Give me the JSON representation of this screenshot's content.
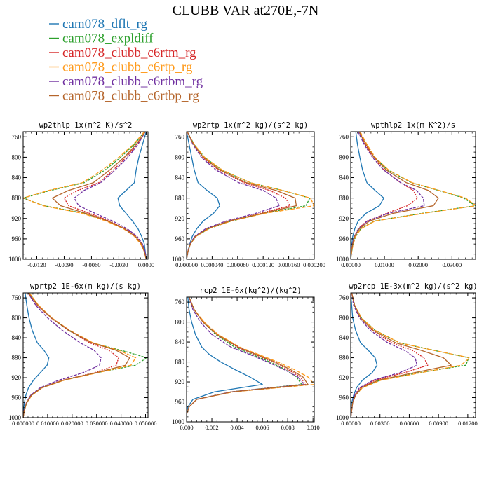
{
  "figure_title": "CLUBB VAR at270E,-7N",
  "legend": [
    {
      "name": "cam078_dflt_rg",
      "color": "#1f77b4"
    },
    {
      "name": "cam078_expldiff",
      "color": "#2ca02c"
    },
    {
      "name": "cam078_clubb_c6rtm_rg",
      "color": "#d62728"
    },
    {
      "name": "cam078_clubb_c6rtp_rg",
      "color": "#ff9a1a"
    },
    {
      "name": "cam078_clubb_c6rtbm_rg",
      "color": "#7030a0"
    },
    {
      "name": "cam078_clubb_c6rtbp_rg",
      "color": "#b5652b"
    }
  ],
  "chart_data": [
    {
      "type": "line",
      "title": "wp2thlp  1x(m^2 K)/s^2",
      "xlim": [
        -0.0135,
        0.0002
      ],
      "ylim": [
        1000,
        750
      ],
      "xticks": [
        -0.012,
        -0.009,
        -0.006,
        -0.003,
        0.0
      ],
      "xtick_labels": [
        "-0.0120",
        "-0.0090",
        "-0.0060",
        "-0.0030",
        "0.0000"
      ],
      "yticks": [
        760,
        800,
        840,
        880,
        920,
        960,
        1000
      ],
      "y": [
        750,
        775,
        800,
        825,
        850,
        865,
        880,
        895,
        910,
        925,
        940,
        955,
        970,
        985,
        1000
      ],
      "series": [
        {
          "name": "cam078_dflt_rg",
          "values": [
            0.0,
            -0.0004,
            -0.0008,
            -0.0011,
            -0.0013,
            -0.0022,
            -0.0031,
            -0.0029,
            -0.0022,
            -0.0015,
            -0.0009,
            -0.0005,
            -0.0002,
            -0.0001,
            0.0
          ]
        },
        {
          "name": "cam078_expldiff",
          "values": [
            -0.0002,
            -0.0013,
            -0.0028,
            -0.0045,
            -0.0068,
            -0.0105,
            -0.0135,
            -0.0112,
            -0.0068,
            -0.0042,
            -0.0024,
            -0.0012,
            -0.0005,
            -0.0002,
            0.0
          ]
        },
        {
          "name": "cam078_clubb_c6rtm_rg",
          "values": [
            -0.0001,
            -0.001,
            -0.0022,
            -0.0036,
            -0.0052,
            -0.0075,
            -0.009,
            -0.0085,
            -0.0062,
            -0.004,
            -0.0023,
            -0.0011,
            -0.0005,
            -0.0002,
            0.0
          ]
        },
        {
          "name": "cam078_clubb_c6rtp_rg",
          "values": [
            -0.0002,
            -0.0014,
            -0.003,
            -0.0048,
            -0.007,
            -0.0107,
            -0.0135,
            -0.0113,
            -0.007,
            -0.0044,
            -0.0025,
            -0.0013,
            -0.0006,
            -0.0002,
            0.0
          ]
        },
        {
          "name": "cam078_clubb_c6rtbm_rg",
          "values": [
            -0.0001,
            -0.0009,
            -0.002,
            -0.0034,
            -0.005,
            -0.0068,
            -0.0079,
            -0.0074,
            -0.0056,
            -0.0037,
            -0.0021,
            -0.001,
            -0.0004,
            -0.0001,
            0.0
          ]
        },
        {
          "name": "cam078_clubb_c6rtbp_rg",
          "values": [
            -0.0001,
            -0.0011,
            -0.0024,
            -0.004,
            -0.0058,
            -0.0085,
            -0.0103,
            -0.0094,
            -0.0066,
            -0.0042,
            -0.0024,
            -0.0012,
            -0.0005,
            -0.0002,
            0.0
          ]
        }
      ]
    },
    {
      "type": "line",
      "title": "wp2rtp  1x(m^2 kg)/(s^2 kg)",
      "xlim": [
        0.0,
        0.0002
      ],
      "ylim": [
        1000,
        750
      ],
      "xticks": [
        0.0,
        4e-05,
        8e-05,
        0.00012,
        0.00016,
        0.0002
      ],
      "xtick_labels": [
        "0.000000",
        "0.000040",
        "0.000080",
        "0.000120",
        "0.000160",
        "0.000200"
      ],
      "yticks": [
        760,
        800,
        840,
        880,
        920,
        960,
        1000
      ],
      "y": [
        750,
        775,
        800,
        825,
        850,
        865,
        880,
        895,
        910,
        925,
        940,
        955,
        970,
        985,
        1000
      ],
      "series": [
        {
          "name": "cam078_dflt_rg",
          "values": [
            0.0,
            4e-06,
            8e-06,
            1.2e-05,
            1.8e-05,
            3.2e-05,
            4.8e-05,
            5.2e-05,
            4.2e-05,
            2.6e-05,
            1.6e-05,
            9e-06,
            5e-06,
            2e-06,
            0.0
          ]
        },
        {
          "name": "cam078_expldiff",
          "values": [
            1e-06,
            1.2e-05,
            2.8e-05,
            5.5e-05,
            0.0001,
            0.00015,
            0.000193,
            0.000187,
            0.00012,
            7e-05,
            3.5e-05,
            1.5e-05,
            6e-06,
            2e-06,
            0.0
          ]
        },
        {
          "name": "cam078_clubb_c6rtm_rg",
          "values": [
            1e-06,
            1.1e-05,
            2.5e-05,
            5e-05,
            9e-05,
            0.00013,
            0.000155,
            0.000162,
            0.000115,
            6.5e-05,
            3.2e-05,
            1.4e-05,
            6e-06,
            2e-06,
            0.0
          ]
        },
        {
          "name": "cam078_clubb_c6rtp_rg",
          "values": [
            1e-06,
            1.2e-05,
            2.8e-05,
            5.6e-05,
            0.0001,
            0.00015,
            0.000194,
            0.0002,
            0.000122,
            7e-05,
            3.5e-05,
            1.5e-05,
            6e-06,
            2e-06,
            0.0
          ]
        },
        {
          "name": "cam078_clubb_c6rtbm_rg",
          "values": [
            1e-06,
            1e-05,
            2.3e-05,
            4.6e-05,
            8.2e-05,
            0.00012,
            0.00014,
            0.000145,
            0.000108,
            6.2e-05,
            3e-05,
            1.3e-05,
            5e-06,
            2e-06,
            0.0
          ]
        },
        {
          "name": "cam078_clubb_c6rtbp_rg",
          "values": [
            1e-06,
            1.1e-05,
            2.6e-05,
            5.2e-05,
            9.4e-05,
            0.00014,
            0.00017,
            0.000172,
            0.000118,
            6.7e-05,
            3.3e-05,
            1.4e-05,
            6e-06,
            2e-06,
            0.0
          ]
        }
      ]
    },
    {
      "type": "line",
      "title": "wpthlp2  1x(m K^2)/s",
      "xlim": [
        0.0,
        0.037
      ],
      "ylim": [
        1000,
        750
      ],
      "xticks": [
        0.0,
        0.01,
        0.02,
        0.03
      ],
      "xtick_labels": [
        "0.00000",
        "0.01000",
        "0.02000",
        "0.03000"
      ],
      "yticks": [
        760,
        800,
        840,
        880,
        920,
        960,
        1000
      ],
      "y": [
        750,
        775,
        800,
        825,
        850,
        865,
        880,
        895,
        910,
        925,
        940,
        955,
        970,
        985,
        1000
      ],
      "series": [
        {
          "name": "cam078_dflt_rg",
          "values": [
            0.0015,
            0.002,
            0.0027,
            0.0035,
            0.0048,
            0.0072,
            0.0098,
            0.0085,
            0.0045,
            0.0022,
            0.0012,
            0.0006,
            0.0003,
            0.0001,
            0.0
          ]
        },
        {
          "name": "cam078_expldiff",
          "values": [
            0.0025,
            0.0045,
            0.007,
            0.011,
            0.018,
            0.026,
            0.0335,
            0.037,
            0.021,
            0.007,
            0.003,
            0.0015,
            0.0007,
            0.0003,
            0.0
          ]
        },
        {
          "name": "cam078_clubb_c6rtm_rg",
          "values": [
            0.0025,
            0.0043,
            0.0066,
            0.0098,
            0.0148,
            0.0185,
            0.0198,
            0.0168,
            0.0105,
            0.0048,
            0.0022,
            0.0011,
            0.0005,
            0.0002,
            0.0
          ]
        },
        {
          "name": "cam078_clubb_c6rtp_rg",
          "values": [
            0.0028,
            0.0048,
            0.0072,
            0.0112,
            0.0182,
            0.0262,
            0.034,
            0.0372,
            0.0215,
            0.0072,
            0.0031,
            0.0015,
            0.0007,
            0.0003,
            0.0
          ]
        },
        {
          "name": "cam078_clubb_c6rtbm_rg",
          "values": [
            0.0022,
            0.004,
            0.0064,
            0.0098,
            0.0148,
            0.0195,
            0.0215,
            0.0218,
            0.011,
            0.005,
            0.0023,
            0.0011,
            0.0005,
            0.0002,
            0.0
          ]
        },
        {
          "name": "cam078_clubb_c6rtbp_rg",
          "values": [
            0.0025,
            0.0045,
            0.0069,
            0.0105,
            0.0165,
            0.023,
            0.026,
            0.0245,
            0.0125,
            0.0056,
            0.0026,
            0.0012,
            0.0006,
            0.0002,
            0.0
          ]
        }
      ]
    },
    {
      "type": "line",
      "title": "wprtp2  1E-6x(m kg)/(s kg)",
      "xlim": [
        0.0,
        0.051
      ],
      "ylim": [
        1000,
        750
      ],
      "xticks": [
        0.0,
        0.01,
        0.02,
        0.03,
        0.04,
        0.05
      ],
      "xtick_labels": [
        "0.000000",
        "0.010000",
        "0.020000",
        "0.030000",
        "0.040000",
        "0.050000"
      ],
      "yticks": [
        760,
        800,
        840,
        880,
        920,
        960,
        1000
      ],
      "y": [
        750,
        775,
        800,
        825,
        850,
        865,
        880,
        895,
        910,
        925,
        940,
        955,
        970,
        985,
        1000
      ],
      "series": [
        {
          "name": "cam078_dflt_rg",
          "values": [
            0.0008,
            0.0015,
            0.0024,
            0.0037,
            0.0058,
            0.0085,
            0.0105,
            0.0098,
            0.007,
            0.0042,
            0.0022,
            0.0011,
            0.0005,
            0.0002,
            0.0
          ]
        },
        {
          "name": "cam078_expldiff",
          "values": [
            0.0025,
            0.0062,
            0.0115,
            0.0185,
            0.028,
            0.04,
            0.0505,
            0.046,
            0.03,
            0.0165,
            0.0078,
            0.0035,
            0.0015,
            0.0005,
            0.0
          ]
        },
        {
          "name": "cam078_clubb_c6rtm_rg",
          "values": [
            0.002,
            0.0058,
            0.0113,
            0.0185,
            0.0272,
            0.035,
            0.039,
            0.038,
            0.029,
            0.016,
            0.0076,
            0.0034,
            0.0014,
            0.0005,
            0.0
          ]
        },
        {
          "name": "cam078_clubb_c6rtp_rg",
          "values": [
            0.0025,
            0.0063,
            0.0117,
            0.019,
            0.0285,
            0.039,
            0.046,
            0.044,
            0.0305,
            0.0168,
            0.0079,
            0.0036,
            0.0015,
            0.0005,
            0.0
          ]
        },
        {
          "name": "cam078_clubb_c6rtbm_rg",
          "values": [
            0.002,
            0.0052,
            0.01,
            0.016,
            0.0233,
            0.029,
            0.0318,
            0.0312,
            0.0245,
            0.0145,
            0.007,
            0.0031,
            0.0013,
            0.0004,
            0.0
          ]
        },
        {
          "name": "cam078_clubb_c6rtbp_rg",
          "values": [
            0.0022,
            0.006,
            0.0115,
            0.0188,
            0.028,
            0.038,
            0.0435,
            0.0418,
            0.0298,
            0.0163,
            0.0077,
            0.0034,
            0.0014,
            0.0005,
            0.0
          ]
        }
      ]
    },
    {
      "type": "line",
      "title": "rcp2  1E-6x(kg^2)/(kg^2)",
      "xlim": [
        0.0,
        0.0101
      ],
      "ylim": [
        1000,
        750
      ],
      "xticks": [
        0.0,
        0.002,
        0.004,
        0.006,
        0.008,
        0.01
      ],
      "xtick_labels": [
        "0.000",
        "0.002",
        "0.004",
        "0.006",
        "0.008",
        "0.010"
      ],
      "yticks": [
        760,
        800,
        840,
        880,
        920,
        960,
        1000
      ],
      "y": [
        750,
        775,
        800,
        825,
        850,
        865,
        880,
        895,
        910,
        925,
        940,
        955,
        970,
        985,
        1000
      ],
      "series": [
        {
          "name": "cam078_dflt_rg",
          "values": [
            0.0001,
            0.0002,
            0.0004,
            0.0007,
            0.0012,
            0.0018,
            0.0027,
            0.0038,
            0.005,
            0.006,
            0.0022,
            0.0005,
            0.0001,
            0.0,
            0.0
          ]
        },
        {
          "name": "cam078_expldiff",
          "values": [
            0.0002,
            0.0006,
            0.0013,
            0.0023,
            0.0038,
            0.0052,
            0.0066,
            0.0078,
            0.0087,
            0.0091,
            0.0035,
            0.0008,
            0.0002,
            0.0,
            0.0
          ]
        },
        {
          "name": "cam078_clubb_c6rtm_rg",
          "values": [
            0.0002,
            0.0006,
            0.0013,
            0.0024,
            0.004,
            0.0054,
            0.0068,
            0.008,
            0.009,
            0.0094,
            0.0036,
            0.0008,
            0.0002,
            0.0,
            0.0
          ]
        },
        {
          "name": "cam078_clubb_c6rtp_rg",
          "values": [
            0.0002,
            0.0006,
            0.0014,
            0.0025,
            0.0042,
            0.0057,
            0.0072,
            0.0085,
            0.0096,
            0.0101,
            0.0037,
            0.0008,
            0.0002,
            0.0,
            0.0
          ]
        },
        {
          "name": "cam078_clubb_c6rtbm_rg",
          "values": [
            0.0002,
            0.0005,
            0.0011,
            0.002,
            0.0035,
            0.005,
            0.0064,
            0.0077,
            0.0088,
            0.0093,
            0.0035,
            0.0008,
            0.0002,
            0.0,
            0.0
          ]
        },
        {
          "name": "cam078_clubb_c6rtbp_rg",
          "values": [
            0.0002,
            0.0006,
            0.0013,
            0.0024,
            0.0041,
            0.0055,
            0.007,
            0.0082,
            0.0092,
            0.0096,
            0.0036,
            0.0008,
            0.0002,
            0.0,
            0.0
          ]
        }
      ]
    },
    {
      "type": "line",
      "title": "wp2rcp  1E-3x(m^2 kg)/(s^2 kg)",
      "xlim": [
        0.0,
        0.0128
      ],
      "ylim": [
        1000,
        750
      ],
      "xticks": [
        0.0,
        0.003,
        0.006,
        0.009,
        0.012
      ],
      "xtick_labels": [
        "0.00000",
        "0.00300",
        "0.00600",
        "0.00900",
        "0.01200"
      ],
      "yticks": [
        760,
        800,
        840,
        880,
        920,
        960,
        1000
      ],
      "y": [
        750,
        775,
        800,
        825,
        850,
        865,
        880,
        895,
        910,
        925,
        940,
        955,
        970,
        985,
        1000
      ],
      "series": [
        {
          "name": "cam078_dflt_rg",
          "values": [
            0.0,
            0.0001,
            0.0002,
            0.0005,
            0.001,
            0.0018,
            0.0025,
            0.0027,
            0.0022,
            0.0012,
            0.0006,
            0.0003,
            0.0001,
            0.0,
            0.0
          ]
        },
        {
          "name": "cam078_expldiff",
          "values": [
            0.0001,
            0.0004,
            0.0011,
            0.0025,
            0.005,
            0.0085,
            0.0121,
            0.0118,
            0.007,
            0.003,
            0.0012,
            0.0005,
            0.0002,
            0.0001,
            0.0
          ]
        },
        {
          "name": "cam078_clubb_c6rtm_rg",
          "values": [
            0.0001,
            0.0004,
            0.001,
            0.0022,
            0.0042,
            0.0063,
            0.0075,
            0.0079,
            0.0055,
            0.0025,
            0.001,
            0.0004,
            0.0002,
            0.0001,
            0.0
          ]
        },
        {
          "name": "cam078_clubb_c6rtp_rg",
          "values": [
            0.0001,
            0.0004,
            0.0011,
            0.0025,
            0.005,
            0.0085,
            0.0122,
            0.0113,
            0.0072,
            0.0031,
            0.0012,
            0.0005,
            0.0002,
            0.0001,
            0.0
          ]
        },
        {
          "name": "cam078_clubb_c6rtbm_rg",
          "values": [
            0.0001,
            0.0003,
            0.0009,
            0.002,
            0.0038,
            0.0055,
            0.0066,
            0.0068,
            0.005,
            0.0023,
            0.0009,
            0.0004,
            0.0002,
            0.0001,
            0.0
          ]
        },
        {
          "name": "cam078_clubb_c6rtbp_rg",
          "values": [
            0.0001,
            0.0004,
            0.001,
            0.0023,
            0.0046,
            0.0072,
            0.0095,
            0.0103,
            0.0065,
            0.0028,
            0.0011,
            0.0005,
            0.0002,
            0.0001,
            0.0
          ]
        }
      ]
    }
  ]
}
